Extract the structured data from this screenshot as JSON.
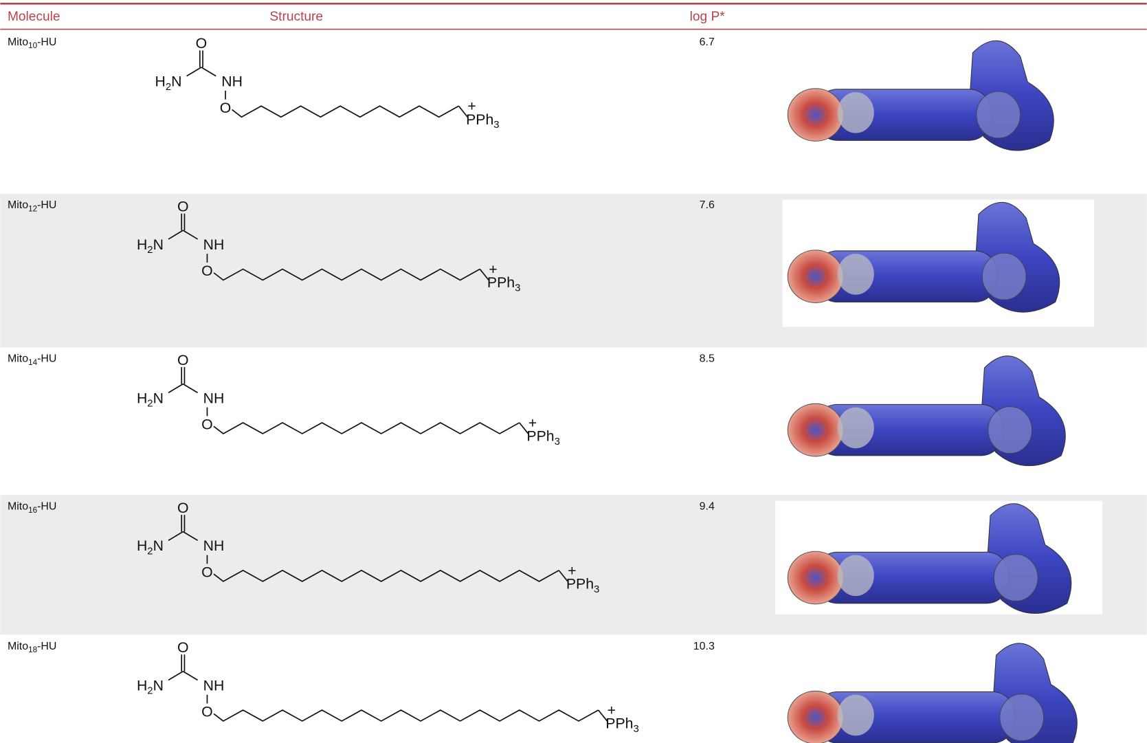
{
  "header": {
    "molecule": "Molecule",
    "structure": "Structure",
    "logp": "log P*"
  },
  "structure_labels": {
    "carbonyl_o": "O",
    "amine_h": "H",
    "amine_sub": "2",
    "amine_n": "N",
    "nh": "NH",
    "ether_o": "O",
    "phosphonium": "PPh",
    "phosphonium_sub": "3",
    "charge": "+"
  },
  "rows": [
    {
      "molecule": {
        "name": "Mito",
        "sub": "10",
        "suffix": "-HU"
      },
      "logp": "6.7"
    },
    {
      "molecule": {
        "name": "Mito",
        "sub": "12",
        "suffix": "-HU"
      },
      "logp": "7.6"
    },
    {
      "molecule": {
        "name": "Mito",
        "sub": "14",
        "suffix": "-HU"
      },
      "logp": "8.5"
    },
    {
      "molecule": {
        "name": "Mito",
        "sub": "16",
        "suffix": "-HU"
      },
      "logp": "9.4"
    },
    {
      "molecule": {
        "name": "Mito",
        "sub": "18",
        "suffix": "-HU"
      },
      "logp": "10.3"
    }
  ]
}
